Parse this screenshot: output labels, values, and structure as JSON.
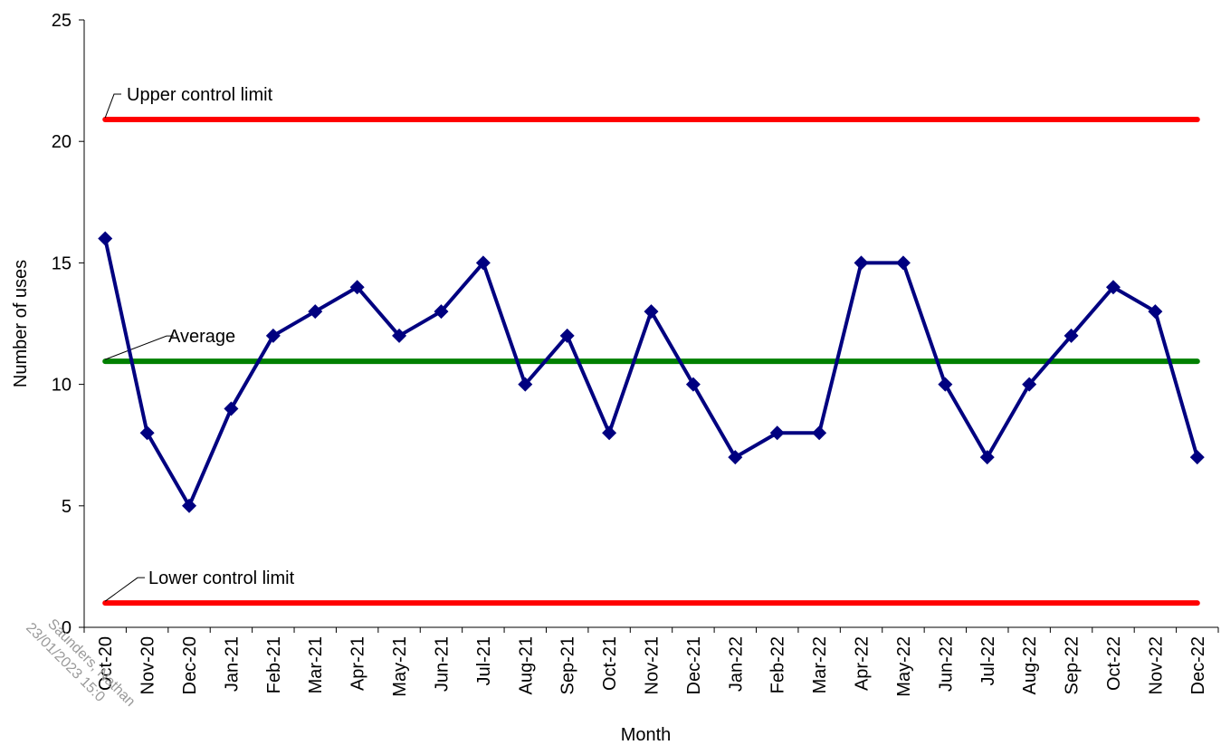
{
  "chart_data": {
    "type": "line",
    "title": "",
    "xlabel": "Month",
    "ylabel": "Number of uses",
    "ylim": [
      0,
      25
    ],
    "yticks": [
      0,
      5,
      10,
      15,
      20,
      25
    ],
    "grid": false,
    "legend": "none",
    "categories": [
      "Oct-20",
      "Nov-20",
      "Dec-20",
      "Jan-21",
      "Feb-21",
      "Mar-21",
      "Apr-21",
      "May-21",
      "Jun-21",
      "Jul-21",
      "Aug-21",
      "Sep-21",
      "Oct-21",
      "Nov-21",
      "Dec-21",
      "Jan-22",
      "Feb-22",
      "Mar-22",
      "Apr-22",
      "May-22",
      "Jun-22",
      "Jul-22",
      "Aug-22",
      "Sep-22",
      "Oct-22",
      "Nov-22",
      "Dec-22"
    ],
    "series": [
      {
        "values": [
          16,
          8,
          5,
          9,
          12,
          13,
          14,
          12,
          13,
          15,
          10,
          12,
          8,
          13,
          10,
          7,
          8,
          8,
          15,
          15,
          10,
          7,
          10,
          12,
          14,
          13,
          7
        ],
        "color": "#000080",
        "marker": "diamond"
      }
    ],
    "reference_lines": [
      {
        "label": "Upper control limit",
        "value": 20.9,
        "color": "#ff0000"
      },
      {
        "label": "Average",
        "value": 10.95,
        "color": "#008000"
      },
      {
        "label": "Lower control limit",
        "value": 1.0,
        "color": "#ff0000"
      }
    ]
  },
  "watermark": {
    "line1": "Saunders, Nathan",
    "line2": "23/01/2023 15:0"
  }
}
